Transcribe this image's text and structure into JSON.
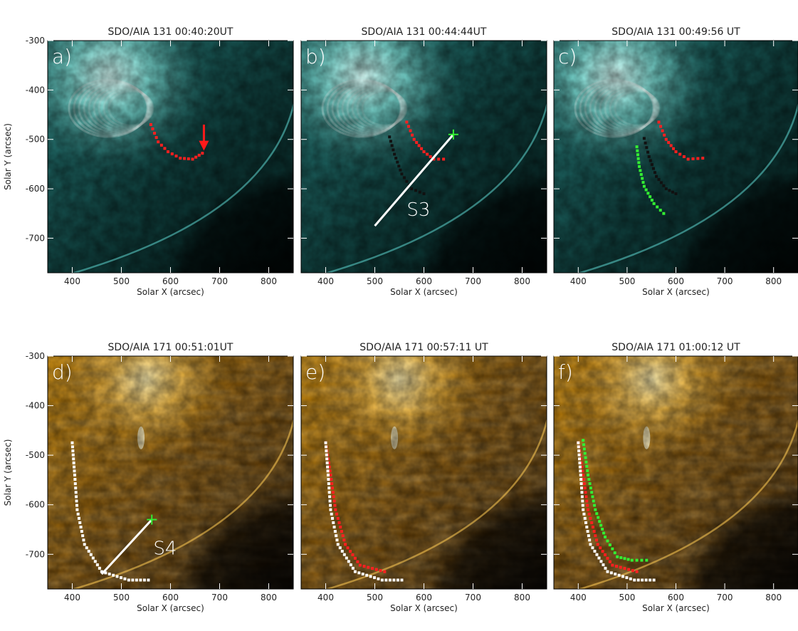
{
  "panels": [
    {
      "id": "a",
      "title": "SDO/AIA 131 00:40:20UT",
      "letter": "a)",
      "xlabel": "Solar X (arcsec)",
      "ylabel": "Solar Y (arcsec)",
      "colors": {
        "bright": "#c8fff8",
        "mid": "#2f8b8b",
        "dark": "#06201f"
      }
    },
    {
      "id": "b",
      "title": "SDO/AIA 131 00:44:44UT",
      "letter": "b)",
      "xlabel": "Solar X (arcsec)",
      "ylabel": "",
      "slit": "S3",
      "colors": {
        "bright": "#c8fff8",
        "mid": "#2f8b8b",
        "dark": "#06201f"
      }
    },
    {
      "id": "c",
      "title": "SDO/AIA 131 00:49:56 UT",
      "letter": "c)",
      "xlabel": "Solar X (arcsec)",
      "ylabel": "",
      "colors": {
        "bright": "#c8fff8",
        "mid": "#2f8b8b",
        "dark": "#06201f"
      }
    },
    {
      "id": "d",
      "title": "SDO/AIA 171 00:51:01UT",
      "letter": "d)",
      "xlabel": "Solar X (arcsec)",
      "ylabel": "Solar Y (arcsec)",
      "slit": "S4",
      "colors": {
        "bright": "#ffe9a8",
        "mid": "#c98500",
        "dark": "#2a1600"
      }
    },
    {
      "id": "e",
      "title": "SDO/AIA 171 00:57:11 UT",
      "letter": "e)",
      "xlabel": "Solar X (arcsec)",
      "ylabel": "",
      "colors": {
        "bright": "#ffe9a8",
        "mid": "#c98500",
        "dark": "#2a1600"
      }
    },
    {
      "id": "f",
      "title": "SDO/AIA 171 01:00:12 UT",
      "letter": "f)",
      "xlabel": "Solar X (arcsec)",
      "ylabel": "",
      "colors": {
        "bright": "#ffe9a8",
        "mid": "#c98500",
        "dark": "#2a1600"
      }
    }
  ],
  "axes": {
    "x_ticks": [
      "400",
      "500",
      "600",
      "700",
      "800"
    ],
    "y_ticks": [
      "-300",
      "-400",
      "-500",
      "-600",
      "-700"
    ]
  },
  "marker_colors": {
    "red": "#ff2020",
    "black": "#111111",
    "green": "#33ee33",
    "white": "#ffffff"
  }
}
